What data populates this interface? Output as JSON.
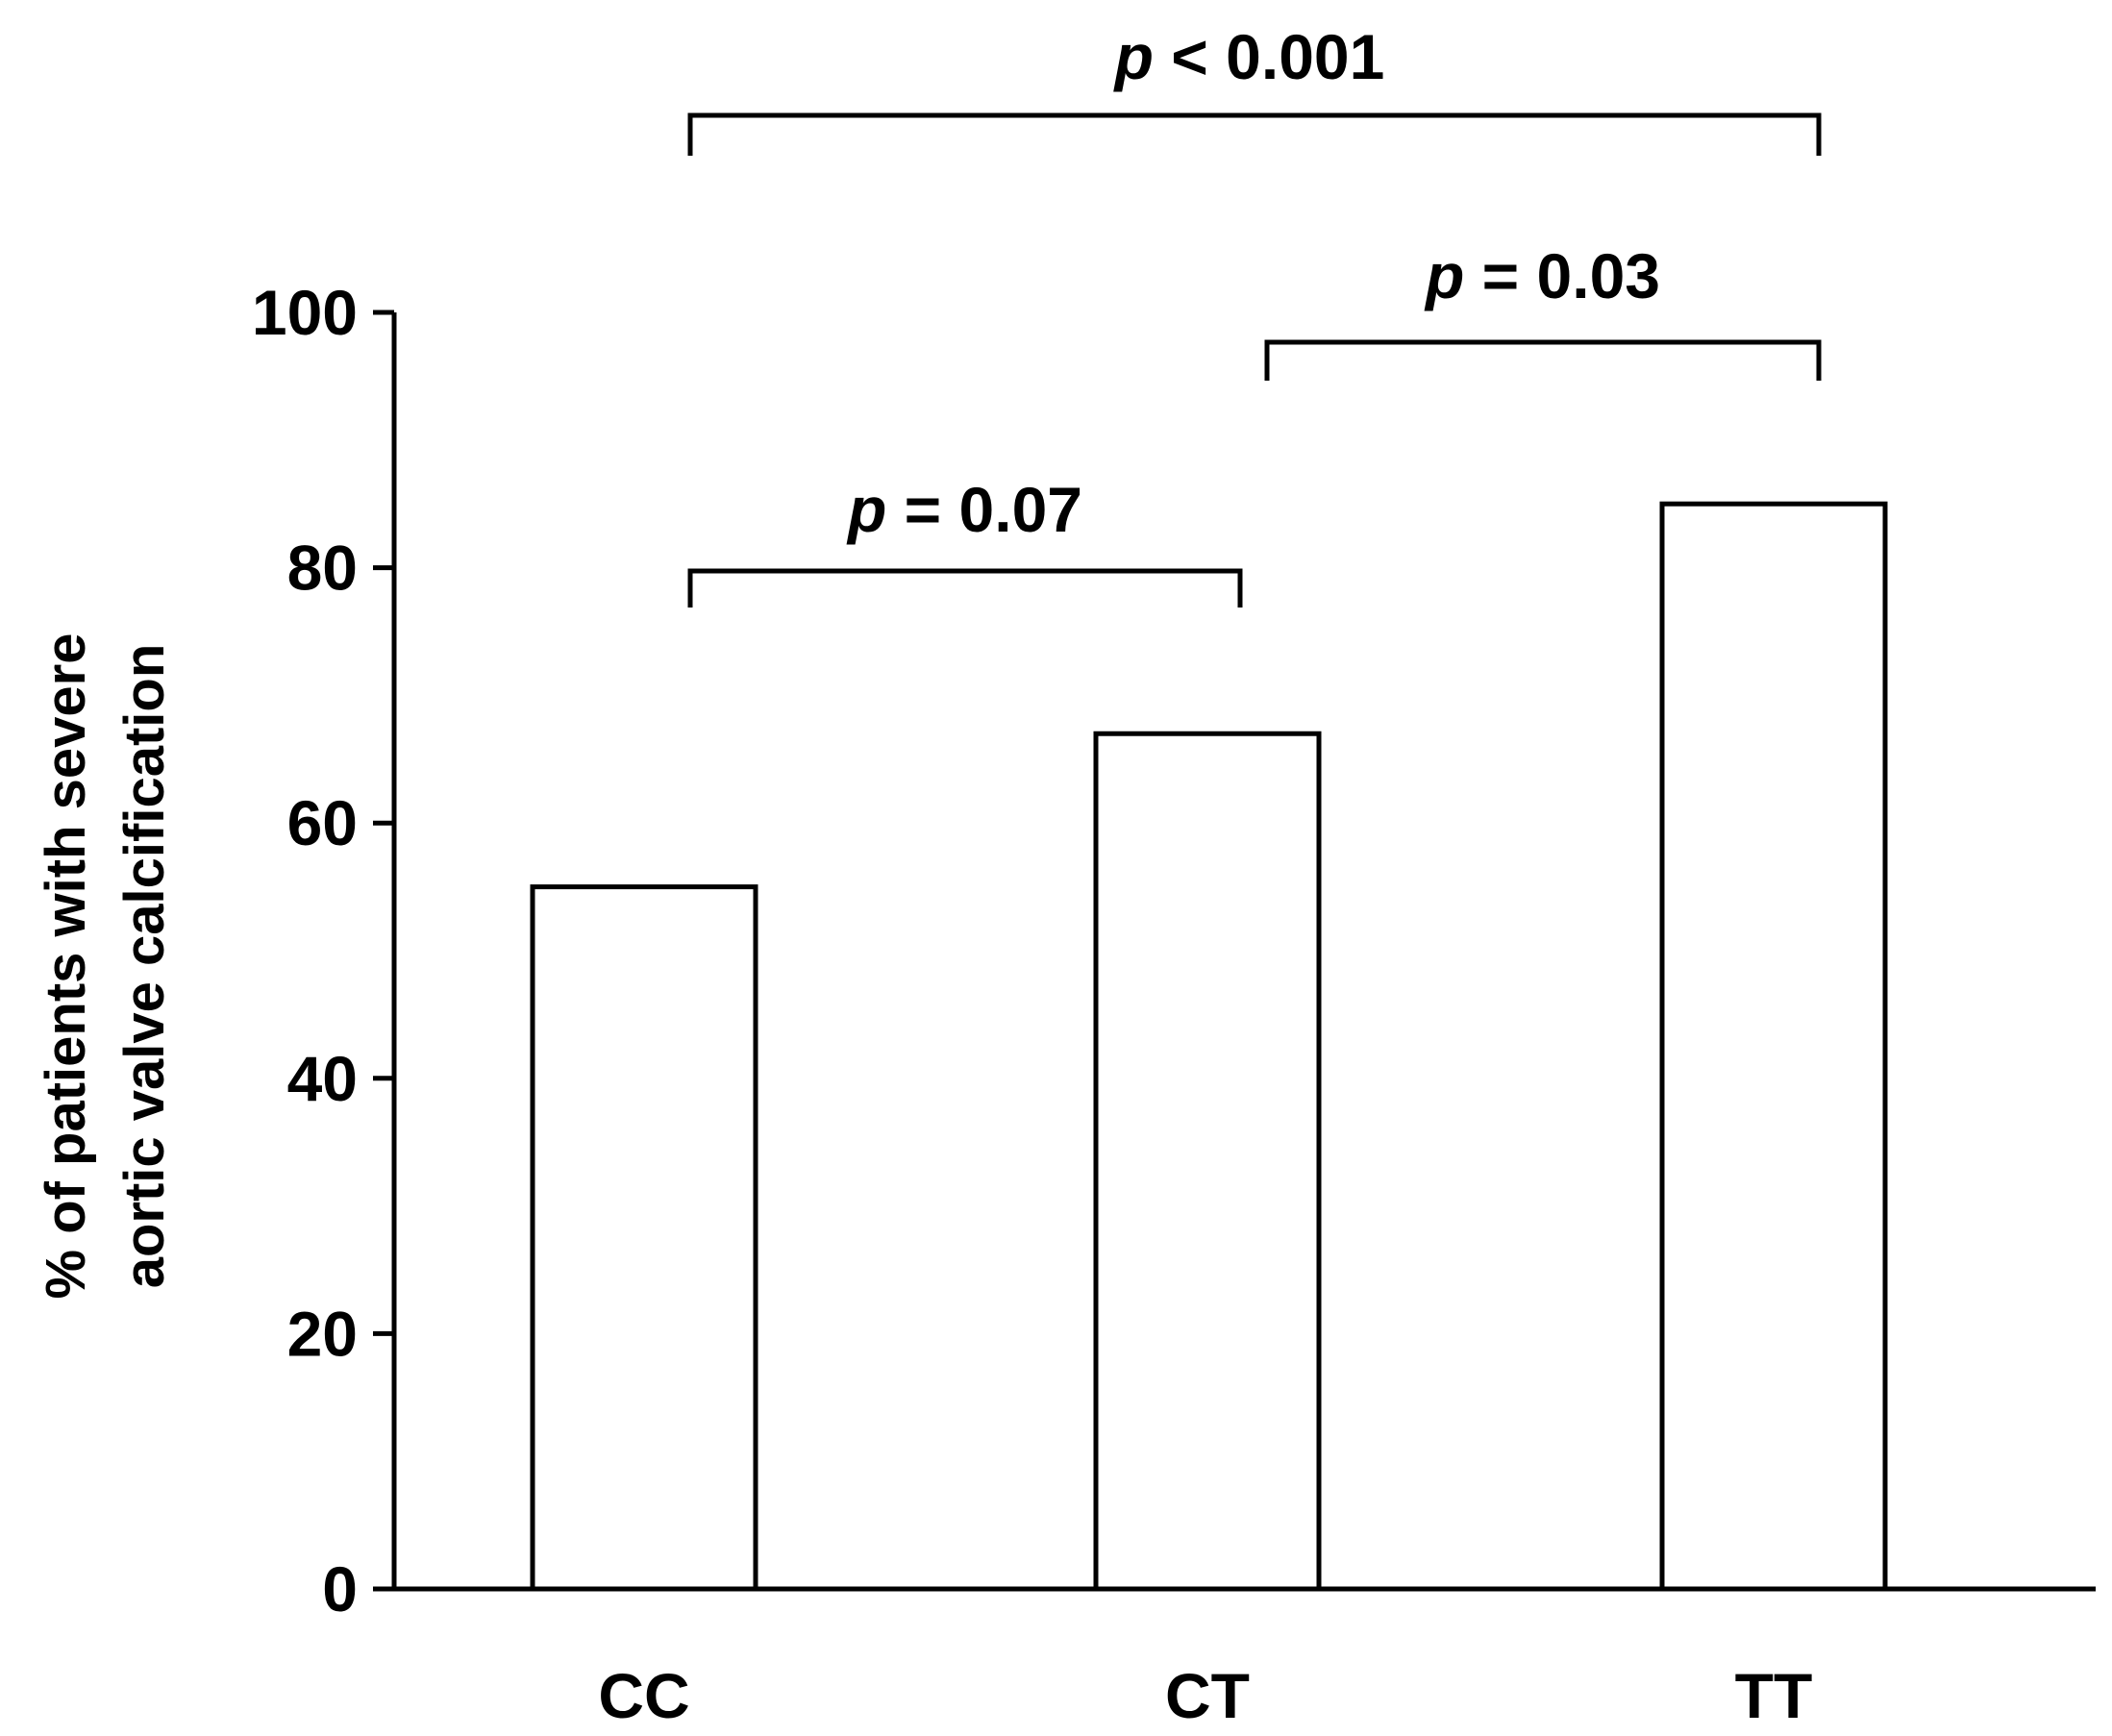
{
  "chart_data": {
    "type": "bar",
    "title": "",
    "categories": [
      "CC",
      "CT",
      "TT"
    ],
    "values": [
      55,
      67,
      85
    ],
    "xlabel": "",
    "ylabel_lines": [
      "% of patients with severe",
      "aortic valve calcification"
    ],
    "ylim": [
      0,
      100
    ],
    "yticks": [
      0,
      20,
      40,
      60,
      80,
      100
    ],
    "grid": false,
    "bar_fill": "#ffffff",
    "bar_stroke": "#000000",
    "comparisons": [
      {
        "from": 0,
        "to": 1,
        "p_symbol": "p",
        "p_rest": " = 0.07"
      },
      {
        "from": 1,
        "to": 2,
        "p_symbol": "p",
        "p_rest": " = 0.03"
      },
      {
        "from": 0,
        "to": 2,
        "p_symbol": "p",
        "p_rest": " < 0.001"
      }
    ]
  }
}
